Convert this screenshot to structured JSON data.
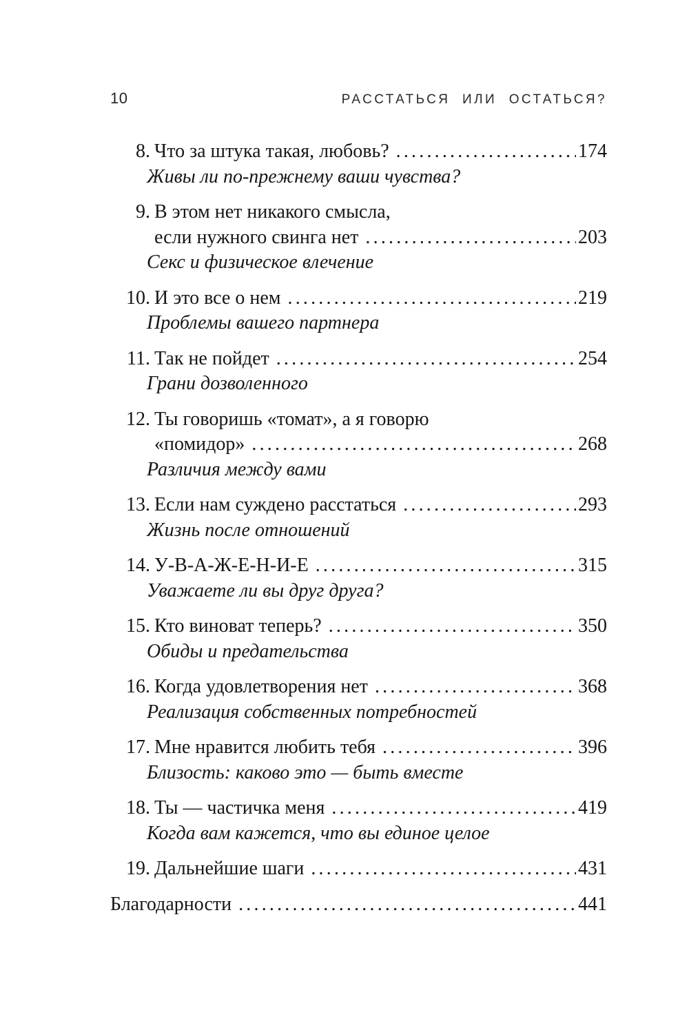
{
  "page": {
    "folio": "10",
    "running_title": "РАССТАТЬСЯ ИЛИ ОСТАТЬСЯ?"
  },
  "toc": {
    "entries": [
      {
        "number": "8.",
        "title_lines": [
          "Что за штука такая, любовь?"
        ],
        "page": "174",
        "subtitle": "Живы ли по-прежнему ваши чувства?"
      },
      {
        "number": "9.",
        "title_lines": [
          "В этом нет никакого смысла,",
          "если нужного свинга нет"
        ],
        "page": "203",
        "subtitle": "Секс и физическое влечение"
      },
      {
        "number": "10.",
        "title_lines": [
          "И это все о нем"
        ],
        "page": "219",
        "subtitle": "Проблемы вашего партнера"
      },
      {
        "number": "11.",
        "title_lines": [
          "Так не пойдет"
        ],
        "page": "254",
        "subtitle": "Грани дозволенного"
      },
      {
        "number": "12.",
        "title_lines": [
          "Ты говоришь «томат», а я говорю",
          "«помидор»"
        ],
        "page": "268",
        "subtitle": "Различия между вами"
      },
      {
        "number": "13.",
        "title_lines": [
          "Если нам суждено расстаться"
        ],
        "page": "293",
        "subtitle": "Жизнь после отношений"
      },
      {
        "number": "14.",
        "title_lines": [
          "У-В-А-Ж-Е-Н-И-Е"
        ],
        "page": "315",
        "subtitle": "Уважаете ли вы друг друга?"
      },
      {
        "number": "15.",
        "title_lines": [
          "Кто виноват теперь?"
        ],
        "page": "350",
        "subtitle": "Обиды и предательства"
      },
      {
        "number": "16.",
        "title_lines": [
          "Когда удовлетворения нет"
        ],
        "page": "368",
        "subtitle": "Реализация собственных потребностей"
      },
      {
        "number": "17.",
        "title_lines": [
          "Мне нравится любить тебя"
        ],
        "page": "396",
        "subtitle": "Близость: каково это — быть вместе"
      },
      {
        "number": "18.",
        "title_lines": [
          "Ты — частичка меня"
        ],
        "page": "419",
        "subtitle": "Когда вам кажется, что вы единое целое"
      },
      {
        "number": "19.",
        "title_lines": [
          "Дальнейшие шаги"
        ],
        "page": "431",
        "subtitle": null
      }
    ],
    "back_matter": {
      "title": "Благодарности",
      "page": "441"
    }
  },
  "colors": {
    "text_primary": "#161616",
    "background": "#ffffff"
  }
}
